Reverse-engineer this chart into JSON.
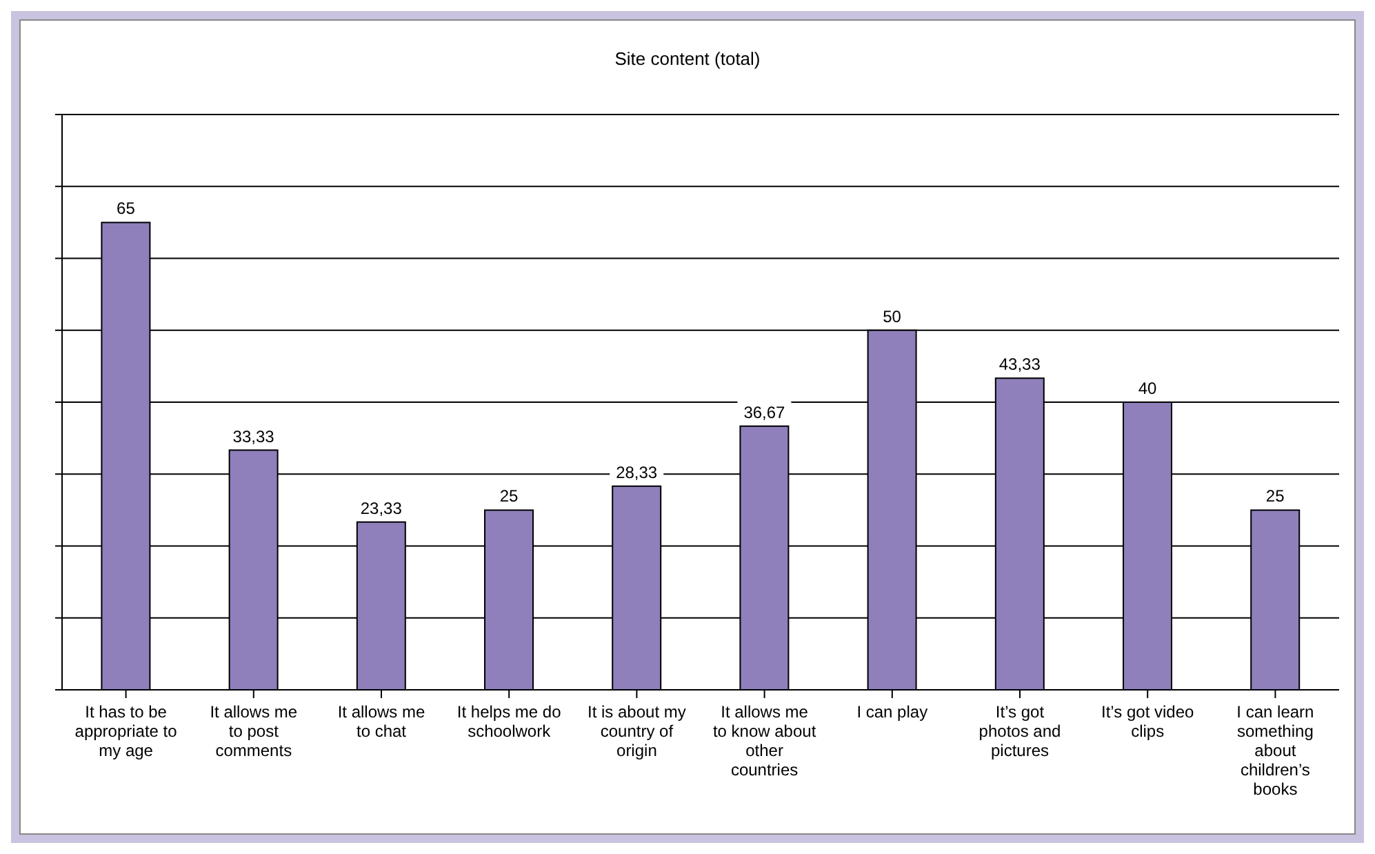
{
  "chart_data": {
    "type": "bar",
    "title": "Site content (total)",
    "categories": [
      "It has to be appropriate to my age",
      "It allows me to post comments",
      "It allows me to chat",
      "It helps me do schoolwork",
      "It is about my country of origin",
      "It allows me to know about other countries",
      "I can play",
      "It’s got photos and pictures",
      "It’s got video clips",
      "I can learn something about children’s books"
    ],
    "values": [
      65,
      33.33,
      23.33,
      25,
      28.33,
      36.67,
      50,
      43.33,
      40,
      25
    ],
    "value_labels": [
      "65",
      "33,33",
      "23,33",
      "25",
      "28,33",
      "36,67",
      "50",
      "43,33",
      "40",
      "25"
    ],
    "color": "#8f7fbb",
    "ylim": [
      0,
      80
    ],
    "yticks": [
      {
        "value": 0,
        "label": null
      },
      {
        "value": 10,
        "label": null
      },
      {
        "value": 20,
        "label": null
      },
      {
        "value": 30,
        "label": null
      },
      {
        "value": 40,
        "label": null
      },
      {
        "value": 50,
        "label": null
      },
      {
        "value": 60,
        "label": null
      },
      {
        "value": 70,
        "label": null
      },
      {
        "value": 80,
        "label": null
      }
    ],
    "tick_labels": "x",
    "grid": "y",
    "legend": false
  }
}
